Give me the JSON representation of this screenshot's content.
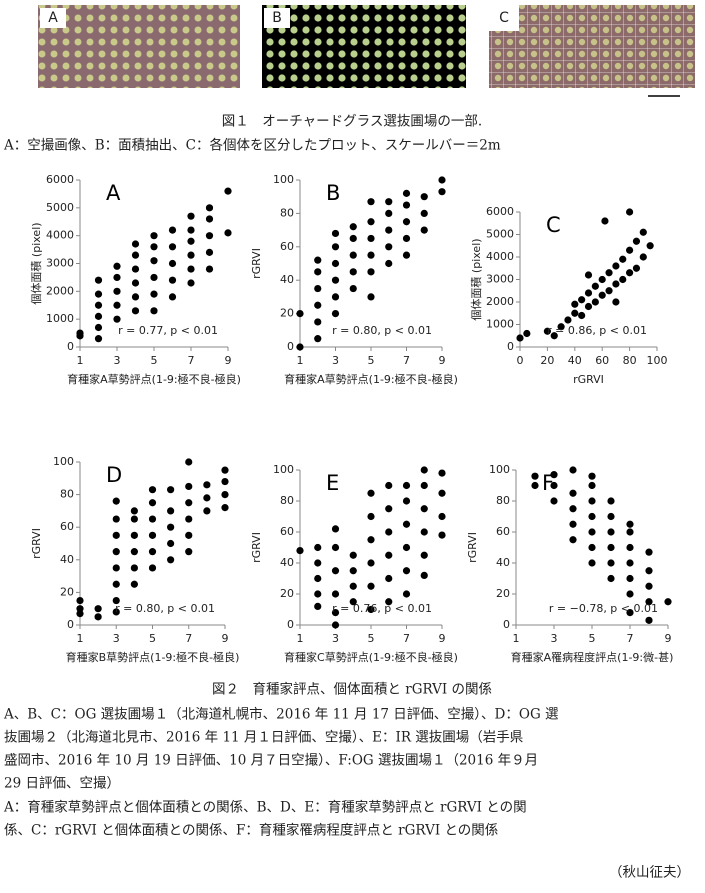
{
  "figure1": {
    "panel_labels": [
      "A",
      "B",
      "C"
    ],
    "caption": [
      "図１　オーチャードグラス選抜圃場の一部.",
      "A：空撮画像、B：面積抽出、C：各個体を区分したプロット、スケールバー＝2m"
    ]
  },
  "chart_data": [
    {
      "type": "scatter",
      "label": "A",
      "ylabel": "個体面積 (pixel)",
      "xlabel": "育種家A草勢評点(1-9:極不良-極良)",
      "annotation": "r = 0.77, p < 0.01",
      "xlim": [
        1,
        9
      ],
      "xticks": [
        1,
        3,
        5,
        7,
        9
      ],
      "ylim": [
        0,
        6000
      ],
      "yticks": [
        0,
        1000,
        2000,
        3000,
        4000,
        5000,
        6000
      ],
      "color": "#000000",
      "x": [
        1,
        1,
        2,
        2,
        2,
        2,
        2,
        2,
        3,
        3,
        3,
        3,
        3,
        4,
        4,
        4,
        4,
        4,
        4,
        5,
        5,
        5,
        5,
        5,
        5,
        6,
        6,
        6,
        6,
        6,
        7,
        7,
        7,
        7,
        7,
        7,
        8,
        8,
        8,
        8,
        8,
        9,
        9
      ],
      "y": [
        400,
        500,
        300,
        700,
        1100,
        1500,
        1900,
        2400,
        1000,
        1500,
        2000,
        2500,
        2900,
        1300,
        1800,
        2300,
        2800,
        3300,
        3700,
        1300,
        1900,
        2500,
        3100,
        3600,
        4000,
        1800,
        2400,
        3000,
        3600,
        4200,
        2300,
        2800,
        3300,
        3800,
        4200,
        4700,
        2800,
        3400,
        4000,
        4600,
        5000,
        4100,
        5600
      ]
    },
    {
      "type": "scatter",
      "label": "B",
      "ylabel": "rGRVI",
      "xlabel": "育種家A草勢評点(1-9:極不良-極良)",
      "annotation": "r = 0.80, p < 0.01",
      "xlim": [
        1,
        9
      ],
      "xticks": [
        1,
        3,
        5,
        7,
        9
      ],
      "ylim": [
        0,
        100
      ],
      "yticks": [
        0,
        20,
        40,
        60,
        80,
        100
      ],
      "color": "#000000",
      "x": [
        1,
        1,
        2,
        2,
        2,
        2,
        2,
        2,
        3,
        3,
        3,
        3,
        3,
        3,
        4,
        4,
        4,
        4,
        4,
        5,
        5,
        5,
        5,
        5,
        5,
        6,
        6,
        6,
        6,
        6,
        7,
        7,
        7,
        7,
        7,
        8,
        8,
        8,
        9,
        9
      ],
      "y": [
        0,
        20,
        5,
        15,
        25,
        35,
        45,
        52,
        20,
        30,
        40,
        50,
        60,
        68,
        35,
        45,
        55,
        65,
        72,
        30,
        45,
        55,
        65,
        75,
        87,
        50,
        60,
        70,
        80,
        87,
        55,
        65,
        75,
        85,
        92,
        70,
        80,
        90,
        93,
        100
      ]
    },
    {
      "type": "scatter",
      "label": "C",
      "ylabel": "個体面積 (pixel)",
      "xlabel": "rGRVI",
      "annotation": "r = 0.86, p < 0.01",
      "xlim": [
        0,
        100
      ],
      "xticks": [
        0,
        20,
        40,
        60,
        80,
        100
      ],
      "ylim": [
        0,
        6000
      ],
      "yticks": [
        0,
        1000,
        2000,
        3000,
        4000,
        5000,
        6000
      ],
      "color": "#000000",
      "x": [
        0,
        5,
        25,
        30,
        35,
        40,
        40,
        45,
        45,
        50,
        50,
        55,
        55,
        60,
        60,
        65,
        65,
        70,
        70,
        75,
        75,
        80,
        80,
        85,
        85,
        90,
        90,
        95,
        62,
        80,
        20,
        50,
        70
      ],
      "y": [
        400,
        600,
        500,
        900,
        1200,
        1500,
        1900,
        1400,
        2100,
        1800,
        2400,
        2000,
        2700,
        2300,
        3000,
        2500,
        3300,
        2800,
        3600,
        3000,
        3900,
        3300,
        4300,
        3500,
        4700,
        4000,
        5100,
        4500,
        5600,
        6000,
        700,
        3200,
        2000
      ]
    },
    {
      "type": "scatter",
      "label": "D",
      "ylabel": "rGRVI",
      "xlabel": "育種家B草勢評点(1-9:極不良-極良)",
      "annotation": "r = 0.80, p < 0.01",
      "xlim": [
        1,
        9
      ],
      "xticks": [
        1,
        3,
        5,
        7,
        9
      ],
      "ylim": [
        0,
        100
      ],
      "yticks": [
        0,
        20,
        40,
        60,
        80,
        100
      ],
      "color": "#000000",
      "x": [
        1,
        1,
        1,
        2,
        2,
        3,
        3,
        3,
        3,
        3,
        3,
        3,
        3,
        4,
        4,
        4,
        4,
        4,
        4,
        5,
        5,
        5,
        5,
        5,
        5,
        6,
        6,
        6,
        6,
        6,
        7,
        7,
        7,
        7,
        7,
        7,
        8,
        8,
        8,
        9,
        9,
        9,
        9
      ],
      "y": [
        7,
        10,
        15,
        5,
        10,
        8,
        15,
        25,
        35,
        45,
        55,
        65,
        76,
        25,
        35,
        45,
        55,
        65,
        70,
        35,
        45,
        55,
        65,
        75,
        83,
        40,
        50,
        60,
        70,
        83,
        45,
        55,
        65,
        75,
        85,
        100,
        70,
        78,
        86,
        72,
        80,
        88,
        95
      ]
    },
    {
      "type": "scatter",
      "label": "E",
      "ylabel": "rGRVI",
      "xlabel": "育種家C草勢評点(1-9:極不良-極良)",
      "annotation": "r = 0.76, p < 0.01",
      "xlim": [
        1,
        9
      ],
      "xticks": [
        1,
        3,
        5,
        7,
        9
      ],
      "ylim": [
        0,
        100
      ],
      "yticks": [
        0,
        20,
        40,
        60,
        80,
        100
      ],
      "color": "#000000",
      "x": [
        1,
        2,
        2,
        2,
        2,
        2,
        3,
        3,
        3,
        3,
        3,
        3,
        4,
        4,
        4,
        4,
        5,
        5,
        5,
        5,
        5,
        5,
        6,
        6,
        6,
        6,
        6,
        6,
        7,
        7,
        7,
        7,
        7,
        7,
        8,
        8,
        8,
        8,
        8,
        8,
        9,
        9,
        9,
        9
      ],
      "y": [
        48,
        12,
        20,
        30,
        40,
        50,
        0,
        8,
        20,
        35,
        50,
        62,
        15,
        25,
        35,
        45,
        10,
        25,
        40,
        55,
        70,
        85,
        15,
        30,
        45,
        60,
        75,
        90,
        20,
        35,
        50,
        65,
        80,
        90,
        32,
        45,
        60,
        75,
        90,
        100,
        58,
        70,
        85,
        98
      ]
    },
    {
      "type": "scatter",
      "label": "F",
      "ylabel": "rGRVI",
      "xlabel": "育種家A罹病程度評点(1-9:微-甚)",
      "annotation": "r = −0.78, p < 0.01",
      "xlim": [
        1,
        9
      ],
      "xticks": [
        1,
        3,
        5,
        7,
        9
      ],
      "ylim": [
        0,
        100
      ],
      "yticks": [
        0,
        20,
        40,
        60,
        80,
        100
      ],
      "color": "#000000",
      "x": [
        2,
        2,
        3,
        3,
        3,
        4,
        4,
        4,
        4,
        4,
        5,
        5,
        5,
        5,
        5,
        5,
        5,
        6,
        6,
        6,
        6,
        6,
        6,
        7,
        7,
        7,
        7,
        7,
        7,
        7,
        8,
        8,
        8,
        8,
        8,
        9
      ],
      "y": [
        90,
        96,
        80,
        90,
        97,
        55,
        65,
        75,
        85,
        100,
        40,
        50,
        60,
        70,
        80,
        90,
        96,
        30,
        40,
        50,
        60,
        70,
        80,
        8,
        20,
        30,
        40,
        50,
        60,
        65,
        3,
        15,
        25,
        35,
        47,
        15
      ]
    }
  ],
  "figure2": {
    "caption_title": "図２　育種家評点、個体面積と rGRVI の関係",
    "caption": [
      "A、B、C：OG 選抜圃場１（北海道札幌市、2016 年 11 月 17 日評価、空撮）、D：OG 選",
      "抜圃場２（北海道北見市、2016 年 11 月１日評価、空撮）、E：IR 選抜圃場（岩手県",
      "盛岡市、2016 年 10 月 19 日評価、10 月７日空撮）、F:OG 選抜圃場１（2016 年９月",
      "29 日評価、空撮）",
      "A：育種家草勢評点と個体面積との関係、B、D、E：育種家草勢評点と rGRVI との関",
      "係、C：rGRVI と個体面積との関係、F：育種家罹病程度評点と rGRVI との関係"
    ]
  },
  "author": "（秋山征夫）"
}
